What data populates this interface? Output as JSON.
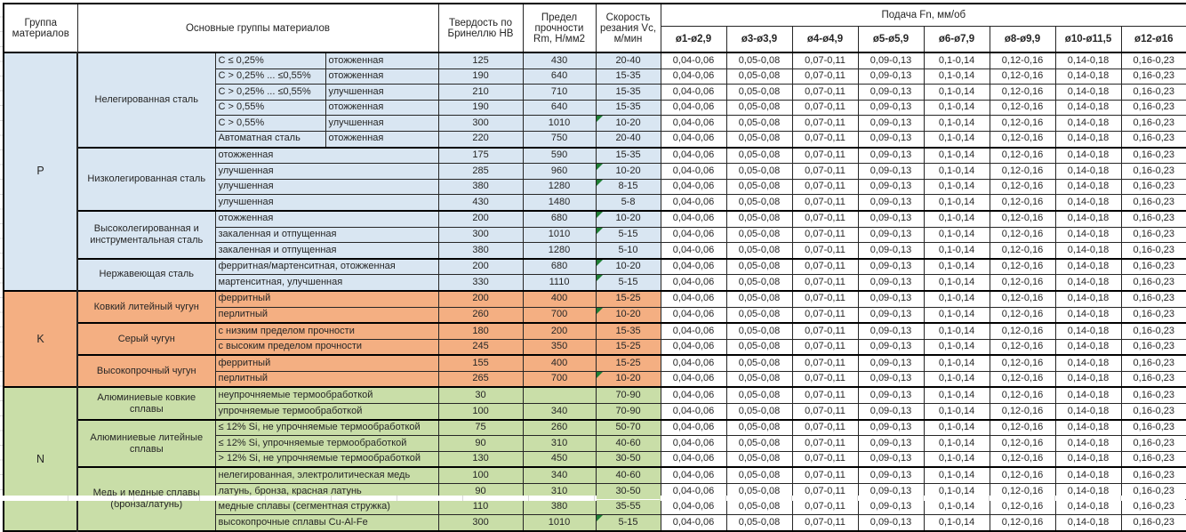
{
  "header": {
    "col_group": "Группа материалов",
    "col_materials": "Основные группы материалов",
    "col_hb": "Твердость по Бринеллю HB",
    "col_rm": "Предел прочности Rm, Н/мм2",
    "col_vc": "Скорость резания Vc, м/мин",
    "feed_title": "Подача Fn, мм/об",
    "diameters": [
      "ø1-ø2,9",
      "ø3-ø3,9",
      "ø4-ø4,9",
      "ø5-ø5,9",
      "ø6-ø7,9",
      "ø8-ø9,9",
      "ø10-ø11,5",
      "ø12-ø16"
    ]
  },
  "feed_values": [
    "0,04-0,06",
    "0,05-0,08",
    "0,07-0,11",
    "0,09-0,13",
    "0,1-0,14",
    "0,12-0,16",
    "0,14-0,18",
    "0,16-0,23"
  ],
  "marker_color": "#1E7E34",
  "groups": [
    {
      "letter": "P",
      "color": "#D9E6F2",
      "subgroups": [
        {
          "name": "Нелегированная сталь",
          "rows": [
            {
              "cells": [
                "C ≤ 0,25%",
                "отожженная"
              ],
              "hb": "125",
              "rm": "430",
              "vc": "20-40",
              "marker": false
            },
            {
              "cells": [
                "C > 0,25% ... ≤0,55%",
                "отожженная"
              ],
              "hb": "190",
              "rm": "640",
              "vc": "15-35",
              "marker": false
            },
            {
              "cells": [
                "C > 0,25% ... ≤0,55%",
                "улучшенная"
              ],
              "hb": "210",
              "rm": "710",
              "vc": "15-35",
              "marker": false
            },
            {
              "cells": [
                "C > 0,55%",
                "отожженная"
              ],
              "hb": "190",
              "rm": "640",
              "vc": "15-35",
              "marker": false
            },
            {
              "cells": [
                "C > 0,55%",
                "улучшенная"
              ],
              "hb": "300",
              "rm": "1010",
              "vc": "10-20",
              "marker": true
            },
            {
              "cells": [
                "Автоматная сталь",
                "отожженная"
              ],
              "hb": "220",
              "rm": "750",
              "vc": "20-40",
              "marker": false
            }
          ]
        },
        {
          "name": "Низколегированная сталь",
          "rows": [
            {
              "cells": [
                "отожженная"
              ],
              "hb": "175",
              "rm": "590",
              "vc": "15-35",
              "marker": false
            },
            {
              "cells": [
                "улучшенная"
              ],
              "hb": "285",
              "rm": "960",
              "vc": "10-20",
              "marker": true
            },
            {
              "cells": [
                "улучшенная"
              ],
              "hb": "380",
              "rm": "1280",
              "vc": "8-15",
              "marker": true
            },
            {
              "cells": [
                "улучшенная"
              ],
              "hb": "430",
              "rm": "1480",
              "vc": "5-8",
              "marker": false
            }
          ]
        },
        {
          "name": "Высоколегированная и инструментальная сталь",
          "rows": [
            {
              "cells": [
                "отожженная"
              ],
              "hb": "200",
              "rm": "680",
              "vc": "10-20",
              "marker": true
            },
            {
              "cells": [
                "закаленная и отпущенная"
              ],
              "hb": "300",
              "rm": "1010",
              "vc": "5-15",
              "marker": true
            },
            {
              "cells": [
                "закаленная и отпущенная"
              ],
              "hb": "380",
              "rm": "1280",
              "vc": "5-10",
              "marker": false
            }
          ]
        },
        {
          "name": "Нержавеющая сталь",
          "rows": [
            {
              "cells": [
                "ферритная/мартенситная, отожженная"
              ],
              "hb": "200",
              "rm": "680",
              "vc": "10-20",
              "marker": true
            },
            {
              "cells": [
                "мартенситная, улучшенная"
              ],
              "hb": "330",
              "rm": "1110",
              "vc": "5-15",
              "marker": true
            }
          ]
        }
      ]
    },
    {
      "letter": "K",
      "color": "#F4AF82",
      "subgroups": [
        {
          "name": "Ковкий литейный чугун",
          "rows": [
            {
              "cells": [
                "ферритный"
              ],
              "hb": "200",
              "rm": "400",
              "vc": "15-25",
              "marker": false
            },
            {
              "cells": [
                "перлитный"
              ],
              "hb": "260",
              "rm": "700",
              "vc": "10-20",
              "marker": true
            }
          ]
        },
        {
          "name": "Серый чугун",
          "rows": [
            {
              "cells": [
                "с низким пределом прочности"
              ],
              "hb": "180",
              "rm": "200",
              "vc": "15-35",
              "marker": false
            },
            {
              "cells": [
                "с высоким пределом прочности"
              ],
              "hb": "245",
              "rm": "350",
              "vc": "15-25",
              "marker": false
            }
          ]
        },
        {
          "name": "Высокопрочный чугун",
          "rows": [
            {
              "cells": [
                "ферритный"
              ],
              "hb": "155",
              "rm": "400",
              "vc": "15-25",
              "marker": false
            },
            {
              "cells": [
                "перлитный"
              ],
              "hb": "265",
              "rm": "700",
              "vc": "10-20",
              "marker": true
            }
          ]
        }
      ]
    },
    {
      "letter": "N",
      "color": "#C9DEA8",
      "subgroups": [
        {
          "name": "Алюминиевые ковкие сплавы",
          "rows": [
            {
              "cells": [
                "неупрочняемые термообработкой"
              ],
              "hb": "30",
              "rm": "",
              "vc": "70-90",
              "marker": false
            },
            {
              "cells": [
                "упрочняемые термообработкой"
              ],
              "hb": "100",
              "rm": "340",
              "vc": "70-90",
              "marker": false
            }
          ]
        },
        {
          "name": "Алюминиевые литейные сплавы",
          "rows": [
            {
              "cells": [
                "≤ 12% Si, не упрочняемые термообработкой"
              ],
              "hb": "75",
              "rm": "260",
              "vc": "50-70",
              "marker": false
            },
            {
              "cells": [
                "≤ 12% Si, упрочняемые термообработкой"
              ],
              "hb": "90",
              "rm": "310",
              "vc": "40-60",
              "marker": false
            },
            {
              "cells": [
                "> 12% Si, не упрочняемые термообработкой"
              ],
              "hb": "130",
              "rm": "450",
              "vc": "30-50",
              "marker": false
            }
          ]
        },
        {
          "name": "Медь и медные сплавы (бронза/латунь)",
          "rows": [
            {
              "cells": [
                "нелегированная, электролитическая медь"
              ],
              "hb": "100",
              "rm": "340",
              "vc": "40-60",
              "marker": false
            },
            {
              "cells": [
                "латунь, бронза, красная латунь"
              ],
              "hb": "90",
              "rm": "310",
              "vc": "30-50",
              "marker": false
            },
            {
              "cells": [
                "медные сплавы (сегментная стружка)"
              ],
              "hb": "110",
              "rm": "380",
              "vc": "35-55",
              "marker": false
            },
            {
              "cells": [
                "высокопрочные сплавы Cu-Al-Fe"
              ],
              "hb": "300",
              "rm": "1010",
              "vc": "5-15",
              "marker": true
            }
          ]
        }
      ]
    }
  ]
}
